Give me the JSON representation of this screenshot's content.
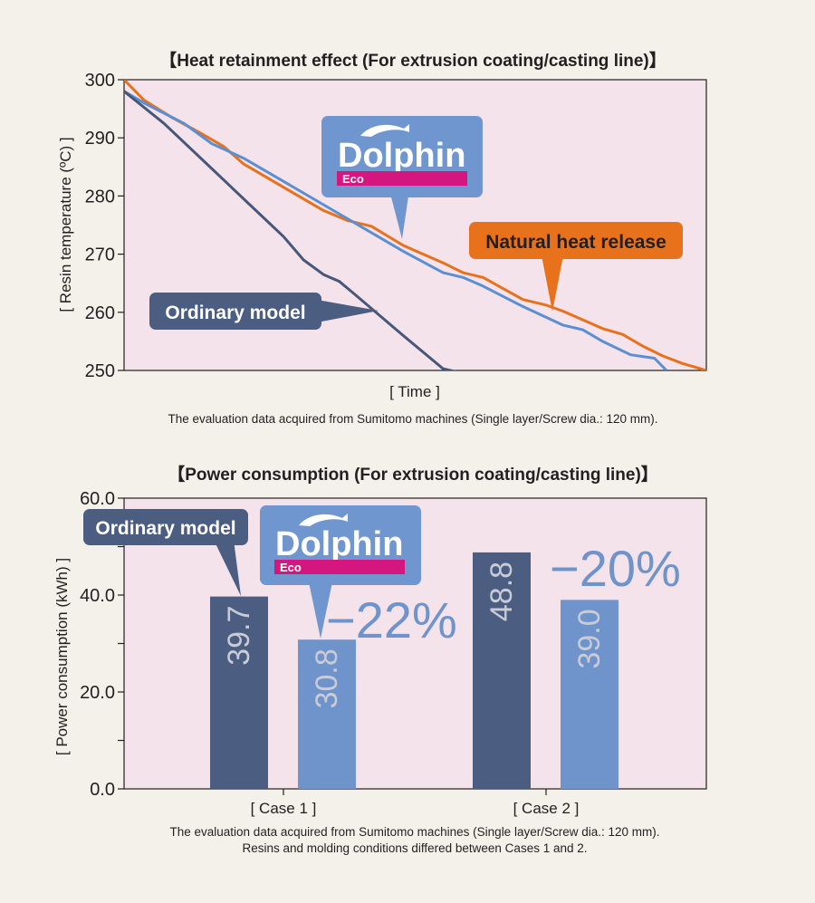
{
  "chart_data": [
    {
      "type": "line",
      "title": "【Heat retainment effect (For extrusion coating/casting line)】",
      "xlabel": "[ Time ]",
      "ylabel": "[ Resin temperature (ºC) ]",
      "ylim": [
        250,
        300
      ],
      "yticks": [
        "300",
        "290",
        "280",
        "270",
        "260",
        "250"
      ],
      "grid": false,
      "note": "The evaluation data acquired from Sumitomo machines (Single layer/Screw dia.: 120 mm).",
      "series": [
        {
          "name": "Natural heat release",
          "color": "#e8711c",
          "points": [
            [
              0,
              300
            ],
            [
              5,
              296.5
            ],
            [
              12,
              293.5
            ],
            [
              20,
              290.5
            ],
            [
              25,
              288.5
            ],
            [
              30,
              285.5
            ],
            [
              40,
              281.5
            ],
            [
              50,
              277.5
            ],
            [
              56,
              275.8
            ],
            [
              62,
              274.8
            ],
            [
              70,
              271.5
            ],
            [
              80,
              268.5
            ],
            [
              85,
              266.8
            ],
            [
              90,
              266
            ],
            [
              100,
              262.2
            ],
            [
              106,
              261.2
            ],
            [
              110,
              260.2
            ],
            [
              115,
              258.7
            ],
            [
              120,
              257.2
            ],
            [
              125,
              256.2
            ],
            [
              130,
              254.2
            ],
            [
              135,
              252.5
            ],
            [
              140,
              251.2
            ],
            [
              146,
              250
            ]
          ]
        },
        {
          "name": "Dolphin Eco",
          "color": "#5b8fd2",
          "points": [
            [
              0,
              298
            ],
            [
              5,
              296
            ],
            [
              15,
              292.5
            ],
            [
              22,
              289
            ],
            [
              30,
              286.5
            ],
            [
              40,
              282.5
            ],
            [
              50,
              278.5
            ],
            [
              60,
              274.5
            ],
            [
              70,
              270.5
            ],
            [
              80,
              266.8
            ],
            [
              85,
              266
            ],
            [
              90,
              264.5
            ],
            [
              100,
              261
            ],
            [
              110,
              257.8
            ],
            [
              115,
              257
            ],
            [
              120,
              255
            ],
            [
              127,
              252.7
            ],
            [
              133,
              252.1
            ],
            [
              136,
              250
            ]
          ]
        },
        {
          "name": "Ordinary model",
          "color": "#46577a",
          "points": [
            [
              0,
              298
            ],
            [
              10,
              292.5
            ],
            [
              20,
              286
            ],
            [
              30,
              279.5
            ],
            [
              40,
              273
            ],
            [
              45,
              269
            ],
            [
              50,
              266.5
            ],
            [
              54,
              265.3
            ],
            [
              58,
              263
            ],
            [
              70,
              256
            ],
            [
              80,
              250.3
            ],
            [
              85,
              249.5
            ]
          ]
        }
      ]
    },
    {
      "type": "bar",
      "title": "【Power consumption (For extrusion coating/casting line)】",
      "xlabel": "",
      "ylabel": "[ Power consumption (kWh) ]",
      "ylim": [
        0,
        60
      ],
      "yticks": [
        "0.0",
        "20.0",
        "40.0",
        "60.0"
      ],
      "categories": [
        "[ Case 1 ]",
        "[ Case 2 ]"
      ],
      "series": [
        {
          "name": "Ordinary model",
          "color": "#4b5e82",
          "values": [
            39.7,
            48.8
          ],
          "labels": [
            "39.7",
            "48.8"
          ]
        },
        {
          "name": "Dolphin Eco",
          "color": "#6f93cb",
          "values": [
            30.8,
            39.0
          ],
          "labels": [
            "30.8",
            "39.0"
          ]
        }
      ],
      "reductions": [
        "−22%",
        "−20%"
      ],
      "note_lines": [
        "The evaluation data acquired from Sumitomo machines (Single layer/Screw dia.: 120 mm).",
        "Resins and molding conditions differed between Cases 1 and 2."
      ]
    }
  ],
  "logo": {
    "word": "Dolphin",
    "sub": "Eco"
  },
  "colors": {
    "plot_bg": "#f4e3ea",
    "page_bg": "#f4f1ea",
    "dolphin_box": "#7096d0",
    "ordinary_box": "#4b5e82",
    "natural_box": "#e8711c",
    "eco_bar": "#d5167f"
  }
}
